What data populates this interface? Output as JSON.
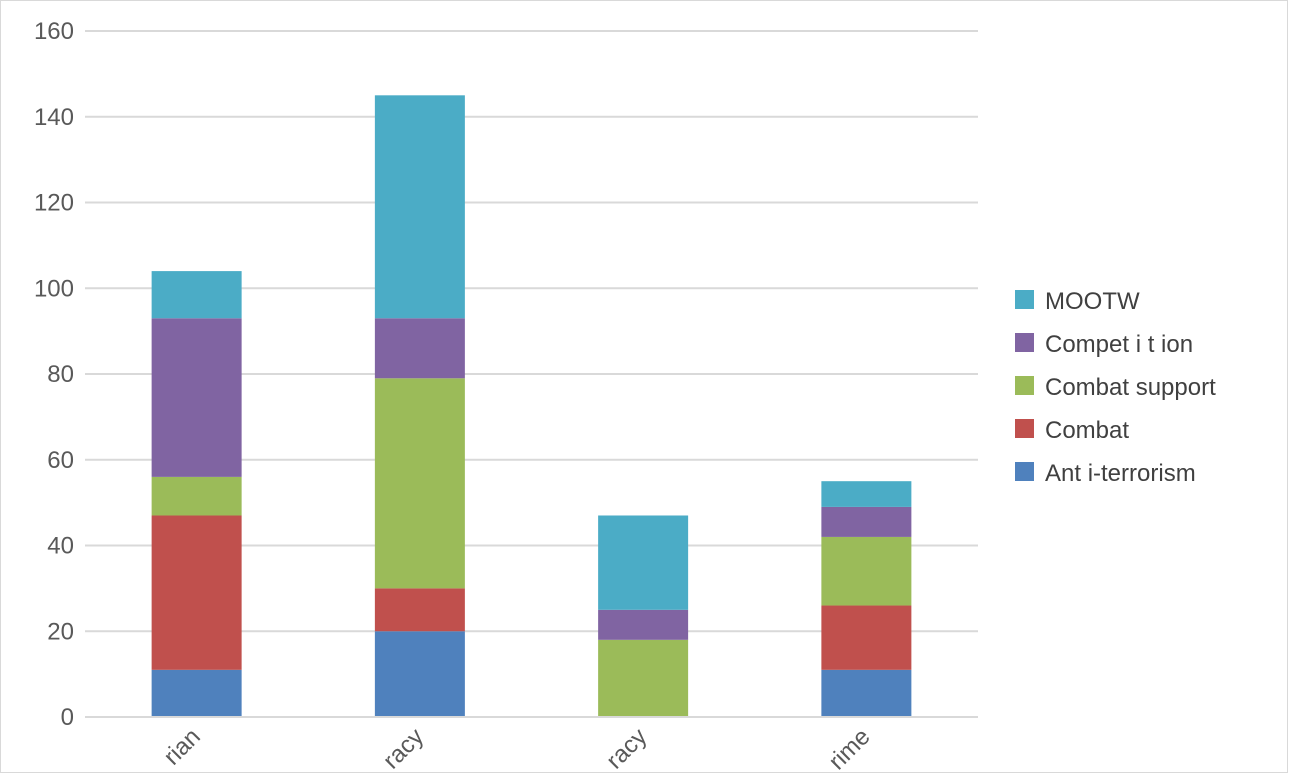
{
  "chart_data": {
    "type": "bar",
    "stacked": true,
    "categories": [
      "rian",
      "racy",
      "racy",
      "rime"
    ],
    "series": [
      {
        "name": "Ant i-terrorism",
        "color": "#4f81bd",
        "values": [
          11,
          20,
          0,
          11
        ]
      },
      {
        "name": "Combat",
        "color": "#c0504d",
        "values": [
          36,
          10,
          0,
          15
        ]
      },
      {
        "name": "Combat support",
        "color": "#9bbb59",
        "values": [
          9,
          49,
          18,
          16
        ]
      },
      {
        "name": "Compet i t ion",
        "color": "#8064a2",
        "values": [
          37,
          14,
          7,
          7
        ]
      },
      {
        "name": "MOOTW",
        "color": "#4bacc6",
        "values": [
          11,
          52,
          22,
          6
        ]
      }
    ],
    "yticks": [
      "0",
      "20",
      "40",
      "60",
      "80",
      "100",
      "120",
      "140",
      "160"
    ],
    "ylim": [
      0,
      160
    ],
    "grid": true,
    "legend_position": "right"
  }
}
